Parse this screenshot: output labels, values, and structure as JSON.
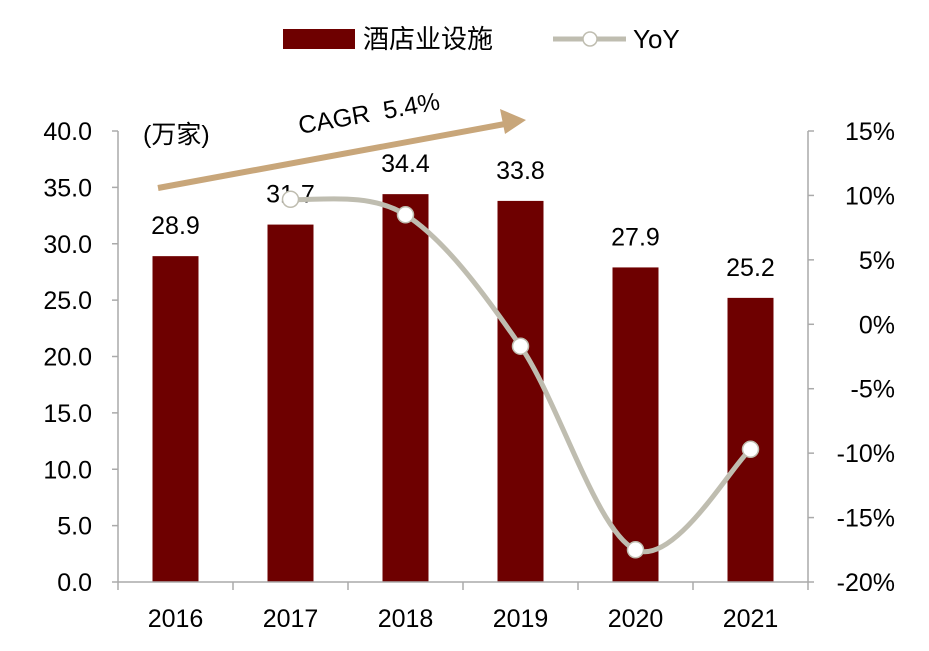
{
  "chart_data": {
    "type": "bar",
    "categories": [
      "2016",
      "2017",
      "2018",
      "2019",
      "2020",
      "2021"
    ],
    "series": [
      {
        "name": "酒店业设施",
        "type": "bar",
        "axis": "left",
        "values": [
          28.9,
          31.7,
          34.4,
          33.8,
          27.9,
          25.2
        ]
      },
      {
        "name": "YoY",
        "type": "line",
        "axis": "right",
        "values": [
          null,
          9.7,
          8.5,
          -1.7,
          -17.5,
          -9.7
        ]
      }
    ],
    "data_labels": [
      "28.9",
      "31.7",
      "34.4",
      "33.8",
      "27.9",
      "25.2"
    ],
    "left_axis": {
      "ylim": [
        0,
        40
      ],
      "ticks": [
        "0.0",
        "5.0",
        "10.0",
        "15.0",
        "20.0",
        "25.0",
        "30.0",
        "35.0",
        "40.0"
      ],
      "unit_label": "(万家)"
    },
    "right_axis": {
      "ylim": [
        -20,
        15
      ],
      "ticks": [
        "-20%",
        "-15%",
        "-10%",
        "-5%",
        "0%",
        "5%",
        "10%",
        "15%"
      ]
    },
    "annotation": "CAGR  5.4%",
    "legend": {
      "position": "top",
      "items": [
        "酒店业设施",
        "YoY"
      ]
    },
    "grid": false,
    "colors": {
      "bar": "#6e0000",
      "line": "#bfbdb0",
      "arrow": "#c8a67a",
      "axis": "#aaaaaa"
    }
  }
}
